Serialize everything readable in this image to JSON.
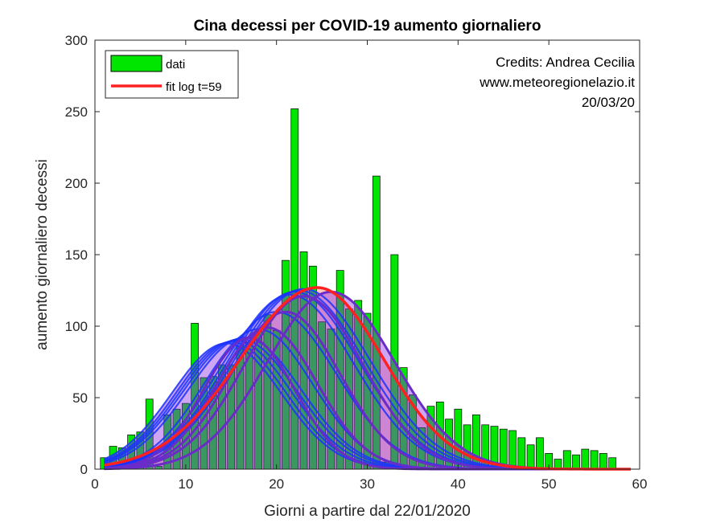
{
  "chart_data": {
    "type": "bar",
    "title": "Cina decessi per COVID-19 aumento giornaliero",
    "xlabel": "Giorni a partire dal 22/01/2020",
    "ylabel": "aumento giornaliero decessi",
    "xlim": [
      0,
      60
    ],
    "ylim": [
      0,
      300
    ],
    "xticks": [
      "0",
      "10",
      "20",
      "30",
      "40",
      "50",
      "60"
    ],
    "yticks": [
      "0",
      "50",
      "100",
      "150",
      "200",
      "250",
      "300"
    ],
    "grid": false,
    "legend_position": "top-left",
    "credits": [
      "Credits: Andrea Cecilia",
      "www.meteoregionelazio.it",
      "20/03/20"
    ],
    "colors": {
      "bars": "#00e600",
      "fit_line": "#ff2020",
      "fit_fill": "#ffb3b3",
      "early_fits": "#1a33ff",
      "late_fits": "#6a2cc8",
      "overlay_fill": "#8a2be2"
    },
    "series": [
      {
        "name": "dati",
        "kind": "bar",
        "x": [
          1,
          2,
          3,
          4,
          5,
          6,
          7,
          8,
          9,
          10,
          11,
          12,
          13,
          14,
          15,
          16,
          17,
          18,
          19,
          20,
          21,
          22,
          23,
          24,
          25,
          26,
          27,
          28,
          29,
          30,
          31,
          32,
          33,
          34,
          35,
          36,
          37,
          38,
          39,
          40,
          41,
          42,
          43,
          44,
          45,
          46,
          47,
          48,
          49,
          50,
          51,
          52,
          53,
          54,
          55,
          56,
          57,
          58
        ],
        "values": [
          8,
          16,
          15,
          24,
          26,
          49,
          2,
          38,
          42,
          46,
          102,
          64,
          65,
          73,
          73,
          86,
          89,
          97,
          108,
          97,
          146,
          252,
          152,
          142,
          103,
          98,
          139,
          112,
          118,
          109,
          205,
          5,
          150,
          71,
          52,
          29,
          44,
          47,
          35,
          42,
          31,
          38,
          31,
          30,
          28,
          27,
          22,
          17,
          22,
          11,
          7,
          13,
          10,
          14,
          13,
          11,
          8,
          0
        ]
      },
      {
        "name": "fit log t=59",
        "kind": "line",
        "peak_day": 24.5,
        "peak_value": 127,
        "width_left": 8.5,
        "width_right": 7.3
      }
    ],
    "partial_fits": [
      {
        "peak_day": 14.5,
        "peak_value": 88,
        "width": 6.0
      },
      {
        "peak_day": 15.0,
        "peak_value": 89,
        "width": 6.0
      },
      {
        "peak_day": 15.5,
        "peak_value": 90,
        "width": 6.1
      },
      {
        "peak_day": 16.0,
        "peak_value": 91,
        "width": 6.2
      },
      {
        "peak_day": 16.5,
        "peak_value": 92,
        "width": 6.2
      },
      {
        "peak_day": 18.0,
        "peak_value": 98,
        "width": 6.0
      },
      {
        "peak_day": 20.0,
        "peak_value": 110,
        "width": 6.6
      },
      {
        "peak_day": 21.5,
        "peak_value": 122,
        "width": 7.0
      },
      {
        "peak_day": 22.0,
        "peak_value": 124,
        "width": 7.1
      },
      {
        "peak_day": 22.5,
        "peak_value": 125,
        "width": 7.2
      },
      {
        "peak_day": 23.0,
        "peak_value": 126,
        "width": 7.3
      }
    ],
    "late_fits": [
      {
        "peak_day": 17.0,
        "peak_value": 92,
        "width": 5.0
      },
      {
        "peak_day": 19.0,
        "peak_value": 99,
        "width": 5.5
      },
      {
        "peak_day": 21.0,
        "peak_value": 110,
        "width": 6.0
      },
      {
        "peak_day": 23.0,
        "peak_value": 121,
        "width": 6.5
      },
      {
        "peak_day": 26.0,
        "peak_value": 124,
        "width": 7.0
      }
    ]
  }
}
